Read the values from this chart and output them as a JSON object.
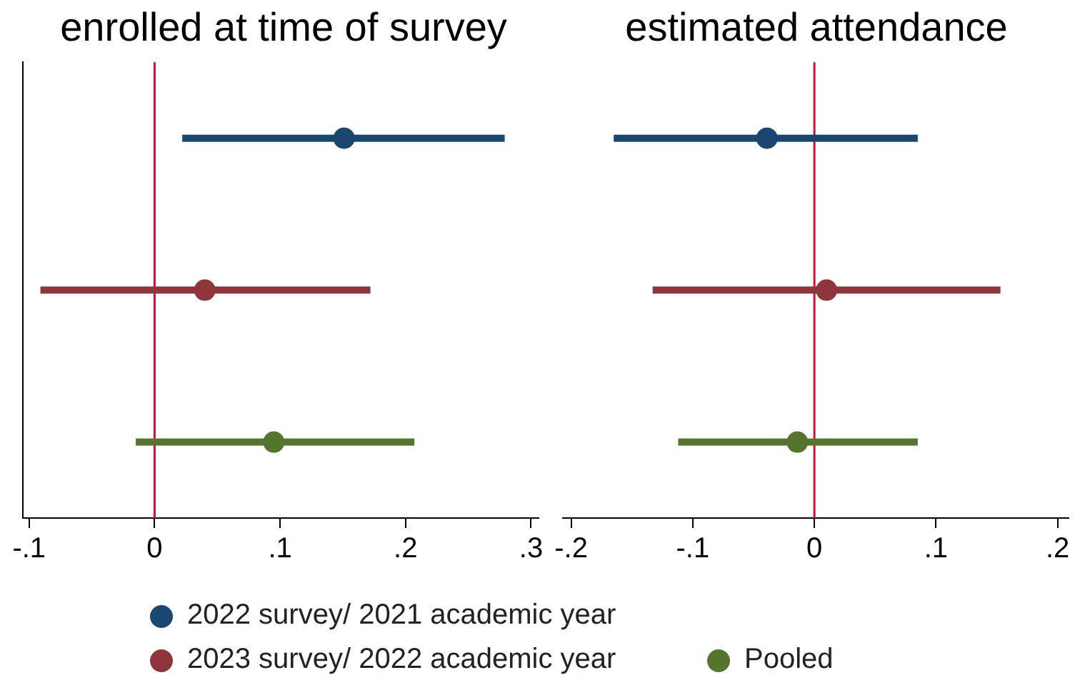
{
  "chart_data": [
    {
      "type": "scatter",
      "title": "enrolled at time of survey",
      "orientation": "horizontal",
      "categories": [
        null,
        null,
        null
      ],
      "series": [
        {
          "name": "2022 survey/ 2021 academic year",
          "color": "#1a476f",
          "values": [
            0.151,
            null,
            null
          ],
          "errors": [
            [
              0.022,
              0.279
            ],
            null,
            null
          ]
        },
        {
          "name": "2023 survey/ 2022 academic year",
          "color": "#90353b",
          "values": [
            null,
            0.04,
            null
          ],
          "errors": [
            null,
            [
              -0.091,
              0.172
            ],
            null
          ]
        },
        {
          "name": "Pooled",
          "color": "#55752f",
          "values": [
            null,
            null,
            0.095
          ],
          "errors": [
            null,
            null,
            [
              -0.015,
              0.207
            ]
          ]
        }
      ],
      "xlim": [
        -0.105,
        0.306
      ],
      "xticks": [
        {
          "value": -0.1,
          "label": "-.1"
        },
        {
          "value": 0,
          "label": "0"
        },
        {
          "value": 0.1,
          "label": ".1"
        },
        {
          "value": 0.2,
          "label": ".2"
        },
        {
          "value": 0.3,
          "label": ".3"
        }
      ],
      "ref_lines": [
        {
          "axis": "x",
          "value": 0,
          "color": "#d0103a"
        }
      ],
      "marker": "circle",
      "grid": false,
      "tick_labels": "x",
      "legend": "bottom"
    },
    {
      "type": "scatter",
      "title": "estimated attendance",
      "orientation": "horizontal",
      "categories": [
        null,
        null,
        null
      ],
      "series": [
        {
          "name": "2022 survey/ 2021 academic year",
          "color": "#1a476f",
          "values": [
            -0.039,
            null,
            null
          ],
          "errors": [
            [
              -0.165,
              0.085
            ],
            null,
            null
          ]
        },
        {
          "name": "2023 survey/ 2022 academic year",
          "color": "#90353b",
          "values": [
            null,
            0.01,
            null
          ],
          "errors": [
            null,
            [
              -0.133,
              0.153
            ],
            null
          ]
        },
        {
          "name": "Pooled",
          "color": "#55752f",
          "values": [
            null,
            null,
            -0.014
          ],
          "errors": [
            null,
            null,
            [
              -0.112,
              0.085
            ]
          ]
        }
      ],
      "xlim": [
        -0.207,
        0.209
      ],
      "xticks": [
        {
          "value": -0.2,
          "label": "-.2"
        },
        {
          "value": -0.1,
          "label": "-.1"
        },
        {
          "value": 0,
          "label": "0"
        },
        {
          "value": 0.1,
          "label": ".1"
        },
        {
          "value": 0.2,
          "label": ".2"
        }
      ],
      "ref_lines": [
        {
          "axis": "x",
          "value": 0,
          "color": "#d0103a"
        }
      ],
      "marker": "circle",
      "grid": false,
      "tick_labels": "x",
      "legend": "bottom"
    }
  ]
}
